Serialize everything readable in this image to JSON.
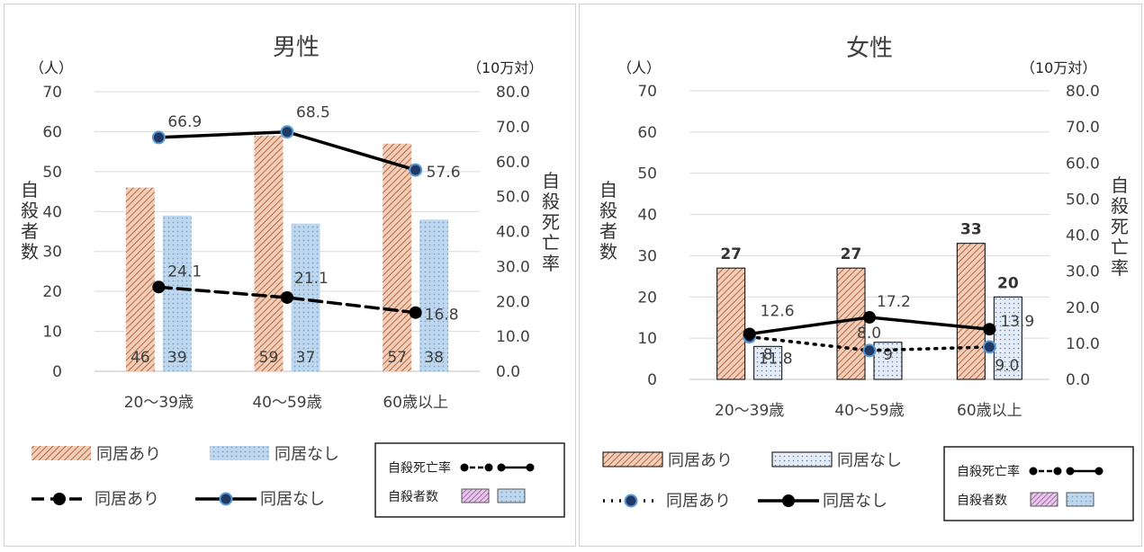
{
  "chart_data": [
    {
      "type": "bar",
      "title": "男性",
      "left_unit": "（人）",
      "right_unit": "（10万対）",
      "ylabel": "自殺者数",
      "y2label": "自殺死亡率",
      "ylim": [
        0,
        70
      ],
      "y2lim": [
        0,
        80
      ],
      "left_ticks": [
        "0",
        "10",
        "20",
        "30",
        "40",
        "50",
        "60",
        "70"
      ],
      "right_ticks": [
        "0.0",
        "10.0",
        "20.0",
        "30.0",
        "40.0",
        "50.0",
        "60.0",
        "70.0",
        "80.0"
      ],
      "categories": [
        "20～39歳",
        "40～59歳",
        "60歳以上"
      ],
      "series": [
        {
          "name": "同居あり",
          "kind": "bar",
          "values": [
            46,
            59,
            57
          ],
          "labels": [
            "46",
            "59",
            "57"
          ],
          "color": "#e8b79e"
        },
        {
          "name": "同居なし",
          "kind": "bar",
          "values": [
            39,
            37,
            38
          ],
          "labels": [
            "39",
            "37",
            "38"
          ],
          "color": "#bdd7ee"
        },
        {
          "name": "同居あり",
          "kind": "line",
          "style": "dashed",
          "values": [
            24.1,
            21.1,
            16.8
          ],
          "labels": [
            "24.1",
            "21.1",
            "16.8"
          ],
          "color": "#000000"
        },
        {
          "name": "同居なし",
          "kind": "line",
          "style": "solid",
          "values": [
            66.9,
            68.5,
            57.6
          ],
          "labels": [
            "66.9",
            "68.5",
            "57.6"
          ],
          "color": "#000000"
        }
      ],
      "legend": {
        "bar_with": "同居あり",
        "bar_without": "同居なし",
        "line_with": "同居あり",
        "line_without": "同居なし",
        "key_rate": "自殺死亡率",
        "key_count": "自殺者数"
      }
    },
    {
      "type": "bar",
      "title": "女性",
      "left_unit": "（人）",
      "right_unit": "（10万対）",
      "ylabel": "自殺者数",
      "y2label": "自殺死亡率",
      "ylim": [
        0,
        70
      ],
      "y2lim": [
        0,
        80
      ],
      "left_ticks": [
        "0",
        "10",
        "20",
        "30",
        "40",
        "50",
        "60",
        "70"
      ],
      "right_ticks": [
        "0.0",
        "10.0",
        "20.0",
        "30.0",
        "40.0",
        "50.0",
        "60.0",
        "70.0",
        "80.0"
      ],
      "categories": [
        "20～39歳",
        "40～59歳",
        "60歳以上"
      ],
      "series": [
        {
          "name": "同居あり",
          "kind": "bar",
          "values": [
            27,
            27,
            33
          ],
          "labels": [
            "27",
            "27",
            "33"
          ],
          "color": "#e8b79e"
        },
        {
          "name": "同居なし",
          "kind": "bar",
          "values": [
            8,
            9,
            20
          ],
          "labels": [
            "8",
            "9",
            "20"
          ],
          "color": "#dce6f2"
        },
        {
          "name": "同居あり",
          "kind": "line",
          "style": "dotted",
          "values": [
            11.8,
            8.0,
            9.0
          ],
          "labels": [
            "11.8",
            "8.0",
            "9.0"
          ],
          "color": "#000000"
        },
        {
          "name": "同居なし",
          "kind": "line",
          "style": "solid",
          "values": [
            12.6,
            17.2,
            13.9
          ],
          "labels": [
            "12.6",
            "17.2",
            "13.9"
          ],
          "color": "#000000"
        }
      ],
      "legend": {
        "bar_with": "同居あり",
        "bar_without": "同居なし",
        "line_with": "同居あり",
        "line_without": "同居なし",
        "key_rate": "自殺死亡率",
        "key_count": "自殺者数"
      }
    }
  ]
}
